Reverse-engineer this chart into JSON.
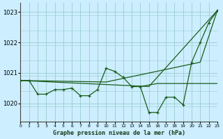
{
  "title": "Graphe pression niveau de la mer (hPa)",
  "bg_color": "#cceeff",
  "grid_color": "#99cccc",
  "line_color": "#1a5c1a",
  "x_min": 0,
  "x_max": 23,
  "y_min": 1019.4,
  "y_max": 1023.3,
  "yticks": [
    1020,
    1021,
    1022,
    1023
  ],
  "xticks": [
    0,
    1,
    2,
    3,
    4,
    5,
    6,
    7,
    8,
    9,
    10,
    11,
    12,
    13,
    14,
    15,
    16,
    17,
    18,
    19,
    20,
    21,
    22,
    23
  ],
  "series1_x": [
    0,
    1,
    2,
    3,
    4,
    5,
    6,
    7,
    8,
    9,
    10,
    11,
    12,
    13,
    14,
    15,
    16,
    17,
    18,
    19,
    20,
    21,
    22,
    23
  ],
  "series1_y": [
    1020.75,
    1020.75,
    1020.3,
    1020.3,
    1020.45,
    1020.45,
    1020.5,
    1020.25,
    1020.25,
    1020.45,
    1021.15,
    1021.05,
    1020.85,
    1020.55,
    1020.55,
    1019.7,
    1019.7,
    1020.2,
    1020.2,
    1019.95,
    1021.35,
    1022.0,
    1022.65,
    1023.05
  ],
  "series2_x": [
    0,
    10,
    21,
    23
  ],
  "series2_y": [
    1020.75,
    1020.7,
    1021.35,
    1023.05
  ],
  "series3_x": [
    0,
    15,
    23
  ],
  "series3_y": [
    1020.75,
    1020.55,
    1023.05
  ],
  "series4_x": [
    14,
    16,
    23
  ],
  "series4_y": [
    1020.55,
    1020.65,
    1020.65
  ]
}
